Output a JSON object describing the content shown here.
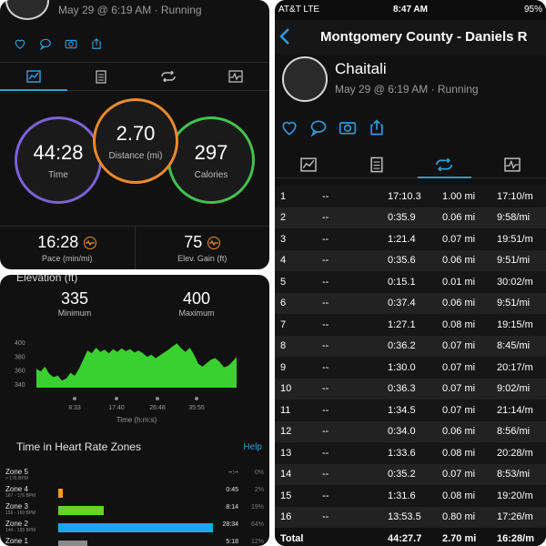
{
  "summary": {
    "meta": "May 29 @ 6:19 AM · Running",
    "rings": [
      {
        "value": "44:28",
        "label": "Time",
        "color": "#7b63d6"
      },
      {
        "value": "2.70",
        "label": "Distance (mi)",
        "color": "#ef8a2c"
      },
      {
        "value": "297",
        "label": "Calories",
        "color": "#42c24f"
      }
    ],
    "pace": {
      "value": "16:28",
      "caption": "Pace (min/mi)"
    },
    "elev_gain": {
      "value": "75",
      "caption": "Elev. Gain (ft)"
    }
  },
  "elevation": {
    "title": "Elevation (ft)",
    "min": {
      "value": "335",
      "caption": "Minimum"
    },
    "max": {
      "value": "400",
      "caption": "Maximum"
    },
    "chart_data": {
      "type": "area",
      "y_ticks": [
        "400",
        "380",
        "360",
        "340"
      ],
      "x_ticks": [
        "8:33",
        "17:40",
        "26:48",
        "35:55"
      ],
      "xlabel": "Time (h:m:s)",
      "color": "#39d12f",
      "ylim": [
        335,
        405
      ],
      "values": [
        362,
        358,
        365,
        355,
        350,
        352,
        345,
        348,
        356,
        352,
        362,
        375,
        388,
        384,
        392,
        386,
        389,
        384,
        390,
        386,
        391,
        387,
        390,
        385,
        388,
        384,
        379,
        382,
        377,
        381,
        385,
        389,
        394,
        398,
        391,
        386,
        392,
        382,
        369,
        365,
        370,
        375,
        377,
        372,
        364,
        366,
        372,
        379
      ]
    },
    "hr_title": "Time in Heart Rate Zones",
    "help": "Help",
    "zones": [
      {
        "name": "Zone 5",
        "range": "> 176 BPM",
        "time": "--:--",
        "pct": "0%",
        "frac": 0,
        "color": "#e23a3a"
      },
      {
        "name": "Zone 4",
        "range": "167 - 176 BPM",
        "time": "0:45",
        "pct": "2%",
        "frac": 0.02,
        "color": "#f39a1e"
      },
      {
        "name": "Zone 3",
        "range": "156 - 166 BPM",
        "time": "8:14",
        "pct": "19%",
        "frac": 0.19,
        "color": "#62d32f"
      },
      {
        "name": "Zone 2",
        "range": "144 - 155 BPM",
        "time": "28:34",
        "pct": "64%",
        "frac": 0.64,
        "color": "#1ea7e8"
      },
      {
        "name": "Zone 1",
        "range": "",
        "time": "5:18",
        "pct": "12%",
        "frac": 0.12,
        "color": "#8a8a8a"
      }
    ]
  },
  "splits_view": {
    "status": {
      "carrier": "AT&T  LTE",
      "time": "8:47 AM",
      "battery": "95%"
    },
    "title": "Montgomery County - Daniels R",
    "name": "Chaitali",
    "meta": "May 29 @ 6:19 AM · Running",
    "rows": [
      [
        "1",
        "--",
        "17:10.3",
        "1.00 mi",
        "17:10/m"
      ],
      [
        "2",
        "--",
        "0:35.9",
        "0.06 mi",
        "9:58/mi"
      ],
      [
        "3",
        "--",
        "1:21.4",
        "0.07 mi",
        "19:51/m"
      ],
      [
        "4",
        "--",
        "0:35.6",
        "0.06 mi",
        "9:51/mi"
      ],
      [
        "5",
        "--",
        "0:15.1",
        "0.01 mi",
        "30:02/m"
      ],
      [
        "6",
        "--",
        "0:37.4",
        "0.06 mi",
        "9:51/mi"
      ],
      [
        "7",
        "--",
        "1:27.1",
        "0.08 mi",
        "19:15/m"
      ],
      [
        "8",
        "--",
        "0:36.2",
        "0.07 mi",
        "8:45/mi"
      ],
      [
        "9",
        "--",
        "1:30.0",
        "0.07 mi",
        "20:17/m"
      ],
      [
        "10",
        "--",
        "0:36.3",
        "0.07 mi",
        "9:02/mi"
      ],
      [
        "11",
        "--",
        "1:34.5",
        "0.07 mi",
        "21:14/m"
      ],
      [
        "12",
        "--",
        "0:34.0",
        "0.06 mi",
        "8:56/mi"
      ],
      [
        "13",
        "--",
        "1:33.6",
        "0.08 mi",
        "20:28/m"
      ],
      [
        "14",
        "--",
        "0:35.2",
        "0.07 mi",
        "8:53/mi"
      ],
      [
        "15",
        "--",
        "1:31.6",
        "0.08 mi",
        "19:20/m"
      ],
      [
        "16",
        "--",
        "13:53.5",
        "0.80 mi",
        "17:26/m"
      ]
    ],
    "total": [
      "Total",
      "",
      "44:27.7",
      "2.70 mi",
      "16:28/m"
    ]
  }
}
